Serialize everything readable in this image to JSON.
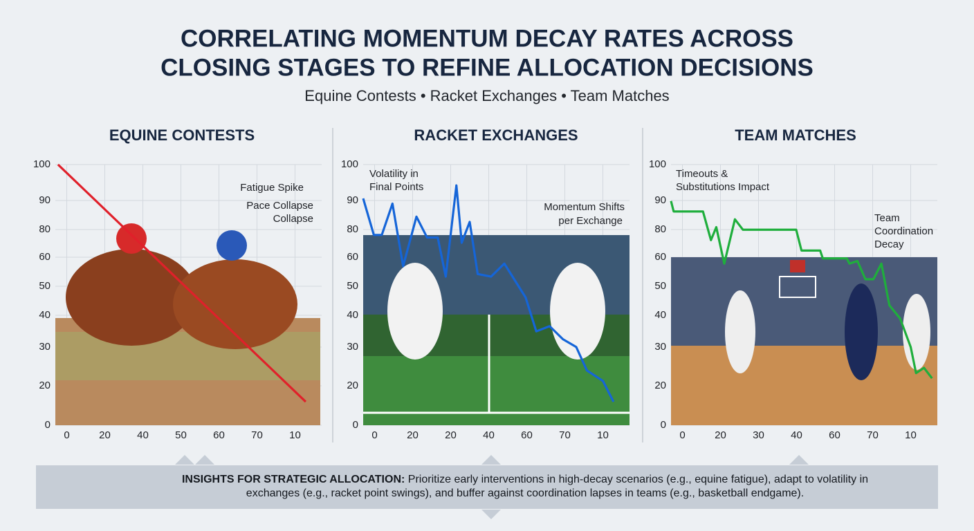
{
  "header": {
    "title_lines": [
      "CORRELATING MOMENTUM DECAY RATES ACROSS",
      "CLOSING STAGES TO REFINE ALLOCATION DECISIONS"
    ],
    "subtitle": "Equine Contests • Racket Exchanges • Team Matches"
  },
  "chart_data": [
    {
      "type": "line",
      "title": "EQUINE CONTESTS",
      "ytick_labels": [
        "100",
        "90",
        "80",
        "60",
        "50",
        "40",
        "30",
        "20",
        "0"
      ],
      "xtick_labels": [
        "0",
        "20",
        "40",
        "50",
        "60",
        "70",
        "10"
      ],
      "xlim": [
        0,
        100
      ],
      "ylim": [
        0,
        100
      ],
      "grid": true,
      "color": "#e0202a",
      "x": [
        1,
        94
      ],
      "values": [
        100,
        9
      ],
      "annotations": [
        "Fatigue Spike",
        "Pace Collapse",
        "Collapse"
      ]
    },
    {
      "type": "line",
      "title": "RACKET EXCHANGES",
      "ytick_labels": [
        "100",
        "90",
        "80",
        "60",
        "50",
        "40",
        "30",
        "20",
        "0"
      ],
      "xtick_labels": [
        "0",
        "20",
        "20",
        "40",
        "60",
        "70",
        "10"
      ],
      "xlim": [
        0,
        100
      ],
      "ylim": [
        0,
        100
      ],
      "grid": true,
      "color": "#1565d8",
      "x": [
        0,
        4,
        7,
        11,
        15,
        20,
        24,
        28,
        31,
        35,
        37,
        40,
        43,
        48,
        53,
        61,
        65,
        70,
        75,
        80,
        84,
        90,
        94
      ],
      "values": [
        87,
        73,
        73,
        85,
        61,
        80,
        72,
        72,
        57,
        92,
        70,
        78,
        58,
        57,
        62,
        49,
        36,
        38,
        33,
        30,
        21,
        17,
        9
      ],
      "annotations": [
        "Volatility in",
        "Final Points",
        "Momentum Shifts",
        "per Exchange"
      ]
    },
    {
      "type": "line",
      "title": "TEAM MATCHES",
      "ytick_labels": [
        "100",
        "90",
        "80",
        "60",
        "50",
        "40",
        "30",
        "20",
        "0"
      ],
      "xtick_labels": [
        "0",
        "20",
        "30",
        "40",
        "60",
        "70",
        "10"
      ],
      "xlim": [
        0,
        100
      ],
      "ylim": [
        0,
        100
      ],
      "grid": true,
      "color": "#1fae3c",
      "x": [
        0,
        1,
        12,
        15,
        17,
        20,
        24,
        27,
        47,
        49,
        56,
        57,
        66,
        67,
        70,
        73,
        76,
        79,
        82,
        86,
        90,
        92,
        95,
        98
      ],
      "values": [
        86,
        82,
        82,
        71,
        76,
        62,
        79,
        75,
        75,
        67,
        67,
        64,
        64,
        62,
        63,
        56,
        56,
        62,
        46,
        41,
        30,
        20,
        22,
        18
      ],
      "annotations": [
        "Timeouts &",
        "Substitutions Impact",
        "Team",
        "Coordination",
        "Decay"
      ]
    }
  ],
  "insight": {
    "label": "INSIGHTS FOR STRATEGIC ALLOCATION:",
    "text": "Prioritize early interventions in high-decay scenarios (e.g., equine fatigue), adapt to volatility in exchanges (e.g., racket point swings), and buffer against coordination lapses in teams (e.g., basketball endgame)."
  }
}
